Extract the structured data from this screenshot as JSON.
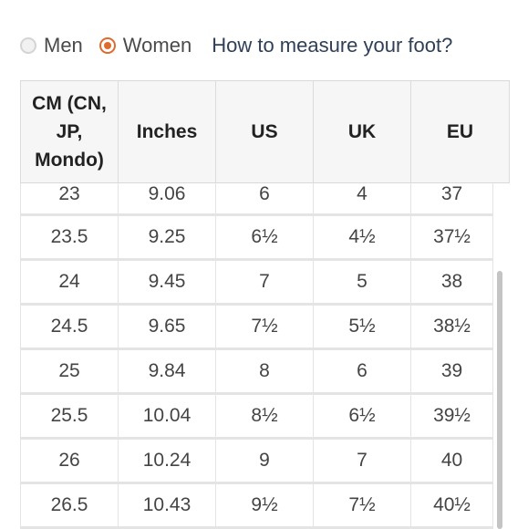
{
  "gender": {
    "options": [
      {
        "label": "Men",
        "checked": false
      },
      {
        "label": "Women",
        "checked": true
      }
    ],
    "measure_link": "How to measure your foot?"
  },
  "colors": {
    "accent": "#e06a2e",
    "link": "#2f3f55"
  },
  "table": {
    "headers": [
      "CM (CN, JP, Mondo)",
      "Inches",
      "US",
      "UK",
      "EU"
    ],
    "rows": [
      [
        "23",
        "9.06",
        "6",
        "4",
        "37"
      ],
      [
        "23.5",
        "9.25",
        "6½",
        "4½",
        "37½"
      ],
      [
        "24",
        "9.45",
        "7",
        "5",
        "38"
      ],
      [
        "24.5",
        "9.65",
        "7½",
        "5½",
        "38½"
      ],
      [
        "25",
        "9.84",
        "8",
        "6",
        "39"
      ],
      [
        "25.5",
        "10.04",
        "8½",
        "6½",
        "39½"
      ],
      [
        "26",
        "10.24",
        "9",
        "7",
        "40"
      ],
      [
        "26.5",
        "10.43",
        "9½",
        "7½",
        "40½"
      ]
    ]
  }
}
